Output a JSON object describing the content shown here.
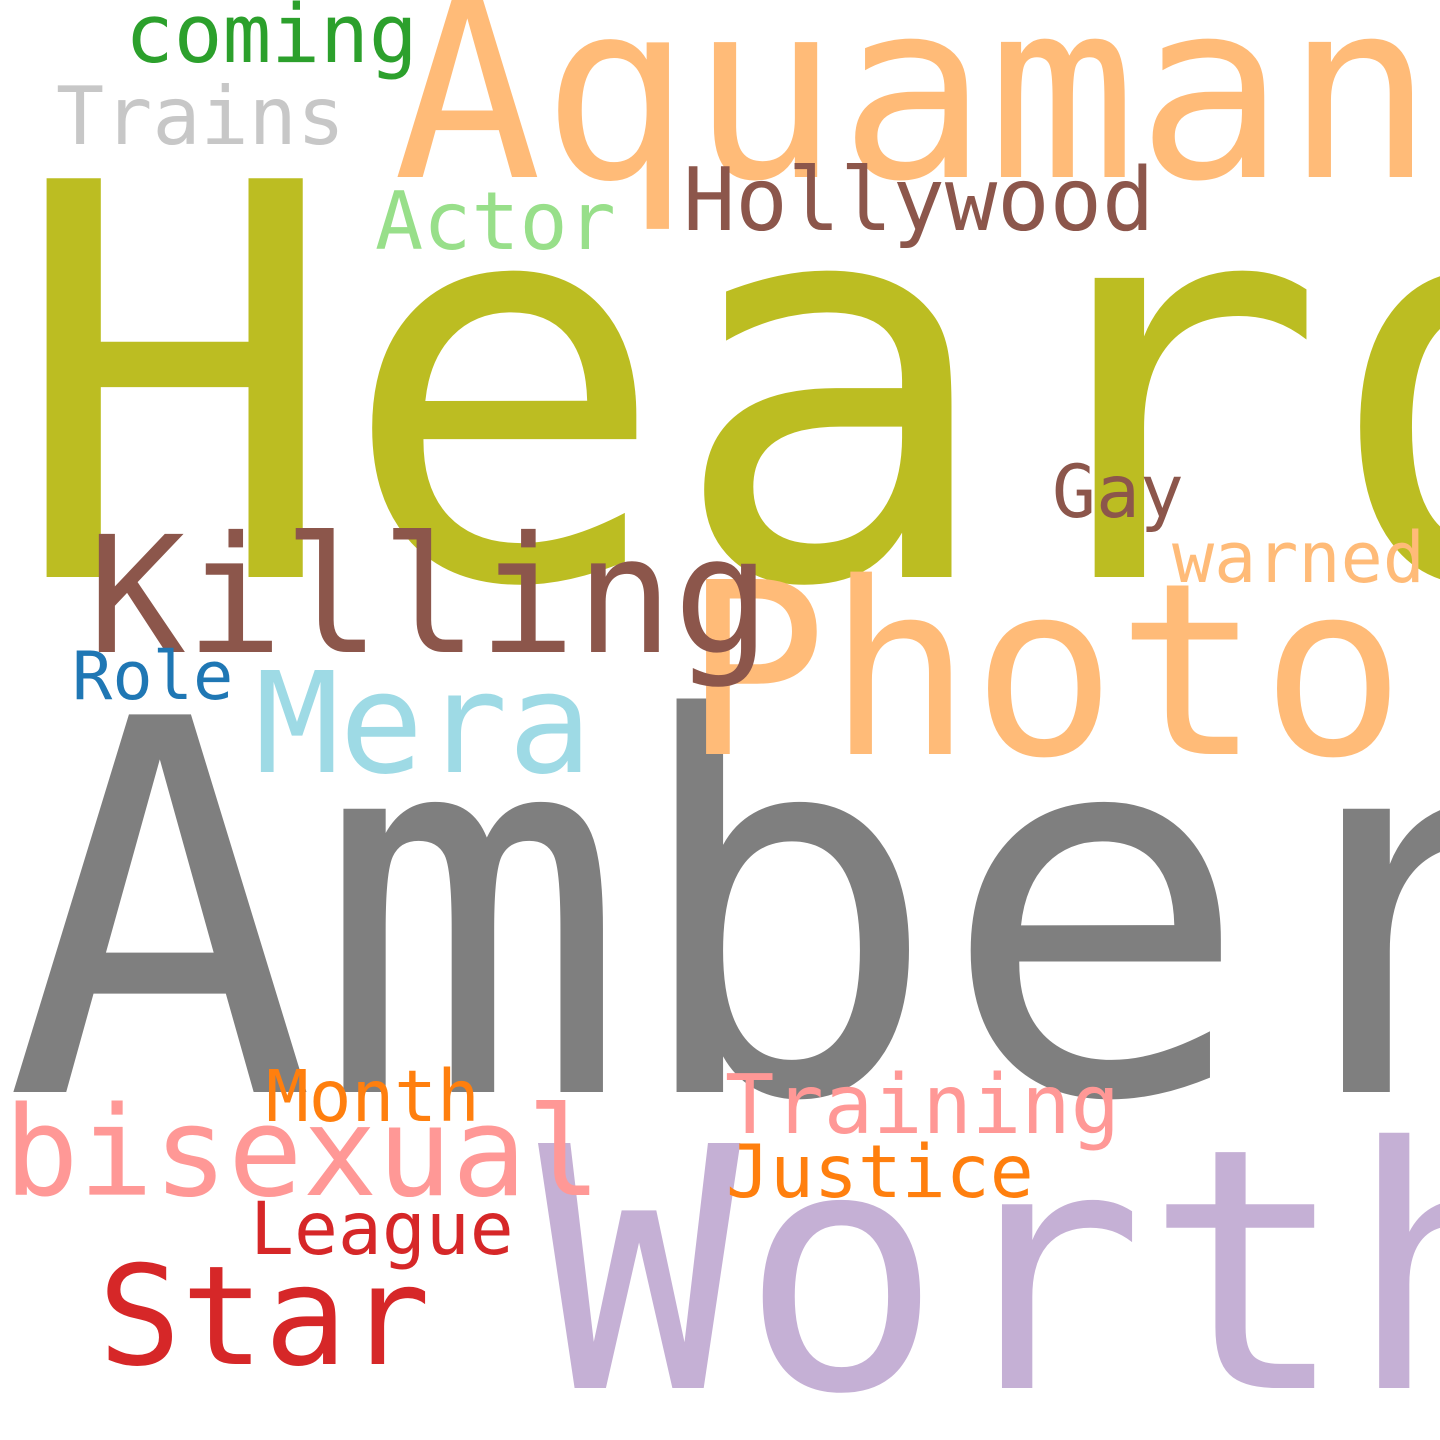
{
  "words": {
    "heard": {
      "text": "Heard",
      "color": "#bcbd22"
    },
    "amber": {
      "text": "Amber",
      "color": "#7f7f7f"
    },
    "aquaman": {
      "text": "Aquaman",
      "color": "#ffbb78"
    },
    "photo": {
      "text": "Photo",
      "color": "#ffbb78"
    },
    "worth": {
      "text": "Worth",
      "color": "#c5b0d5"
    },
    "killing": {
      "text": "Killing",
      "color": "#8c564b"
    },
    "mera": {
      "text": "Mera",
      "color": "#9edae5"
    },
    "star": {
      "text": "Star",
      "color": "#d62728"
    },
    "bisexual": {
      "text": "bisexual",
      "color": "#ff9896"
    },
    "training": {
      "text": "Training",
      "color": "#ff9896"
    },
    "hollywood": {
      "text": "Hollywood",
      "color": "#8c564b"
    },
    "justice": {
      "text": "Justice",
      "color": "#ff7f0e"
    },
    "trains": {
      "text": "Trains",
      "color": "#c7c7c7"
    },
    "coming": {
      "text": "coming",
      "color": "#2ca02c"
    },
    "actor": {
      "text": "Actor",
      "color": "#98df8a"
    },
    "league": {
      "text": "League",
      "color": "#d62728"
    },
    "month": {
      "text": "Month",
      "color": "#ff7f0e"
    },
    "gay": {
      "text": "Gay",
      "color": "#8c564b"
    },
    "warned": {
      "text": "warned",
      "color": "#ffbb78"
    },
    "role": {
      "text": "Role",
      "color": "#1f77b4"
    }
  }
}
